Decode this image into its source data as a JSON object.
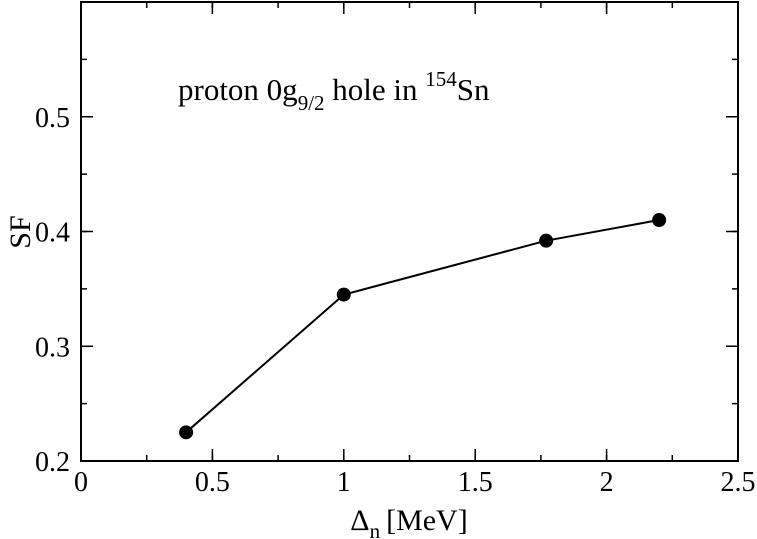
{
  "chart_data": {
    "type": "line",
    "title": "",
    "annotation": {
      "prefix": "proton 0g",
      "subscript": "9/2",
      "middle": " hole in ",
      "superscript": "154",
      "suffix": "Sn"
    },
    "xlabel": {
      "symbol": "Δ",
      "subscript": "n",
      "unit": "[MeV]"
    },
    "ylabel": "SF",
    "xlim": [
      0,
      2.5
    ],
    "ylim": [
      0.2,
      0.6
    ],
    "xticks": [
      {
        "value": 0,
        "label": "0"
      },
      {
        "value": 0.5,
        "label": "0.5"
      },
      {
        "value": 1,
        "label": "1"
      },
      {
        "value": 1.5,
        "label": "1.5"
      },
      {
        "value": 2,
        "label": "2"
      },
      {
        "value": 2.5,
        "label": "2.5"
      }
    ],
    "yticks": [
      {
        "value": 0.2,
        "label": "0.2"
      },
      {
        "value": 0.3,
        "label": "0.3"
      },
      {
        "value": 0.4,
        "label": "0.4"
      },
      {
        "value": 0.5,
        "label": "0.5"
      }
    ],
    "x_minor_step": 0.25,
    "y_minor_step": 0.05,
    "grid": false,
    "legend": "none",
    "series": [
      {
        "marker": "circle",
        "color": "#000000",
        "points": [
          {
            "x": 0.4,
            "y": 0.225
          },
          {
            "x": 1.0,
            "y": 0.345
          },
          {
            "x": 1.77,
            "y": 0.392
          },
          {
            "x": 2.2,
            "y": 0.41
          }
        ]
      }
    ]
  }
}
